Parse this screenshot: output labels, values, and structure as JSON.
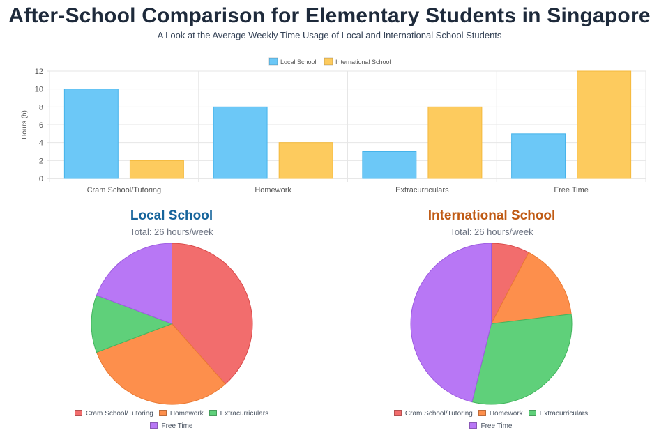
{
  "header": {
    "title": "After-School Comparison for Elementary Students in Singapore",
    "subtitle": "A Look at the Average Weekly Time Usage of Local and International School Students"
  },
  "chart_data": [
    {
      "type": "bar",
      "categories": [
        "Cram School/Tutoring",
        "Homework",
        "Extracurriculars",
        "Free Time"
      ],
      "series": [
        {
          "name": "Local School",
          "values": [
            10,
            8,
            3,
            5
          ],
          "color": "#6cc8f7"
        },
        {
          "name": "International School",
          "values": [
            2,
            4,
            8,
            12
          ],
          "color": "#fdcb5e"
        }
      ],
      "xlabel": "",
      "ylabel": "Hours (h)",
      "ylim": [
        0,
        12
      ],
      "yticks": [
        "0",
        "2",
        "4",
        "6",
        "8",
        "10",
        "12"
      ],
      "grid": true,
      "legend": "top-center"
    },
    {
      "type": "pie",
      "title": "Local School",
      "subtitle": "Total: 26 hours/week",
      "title_color": "#17659c",
      "labels": [
        "Cram School/Tutoring",
        "Homework",
        "Extracurriculars",
        "Free Time"
      ],
      "values": [
        10,
        8,
        3,
        5
      ],
      "colors": [
        "#f26d6d",
        "#fd8f4c",
        "#5fd07a",
        "#b877f5"
      ],
      "legend": "bottom"
    },
    {
      "type": "pie",
      "title": "International School",
      "subtitle": "Total: 26 hours/week",
      "title_color": "#c05b15",
      "labels": [
        "Cram School/Tutoring",
        "Homework",
        "Extracurriculars",
        "Free Time"
      ],
      "values": [
        2,
        4,
        8,
        12
      ],
      "colors": [
        "#f26d6d",
        "#fd8f4c",
        "#5fd07a",
        "#b877f5"
      ],
      "legend": "bottom"
    }
  ]
}
